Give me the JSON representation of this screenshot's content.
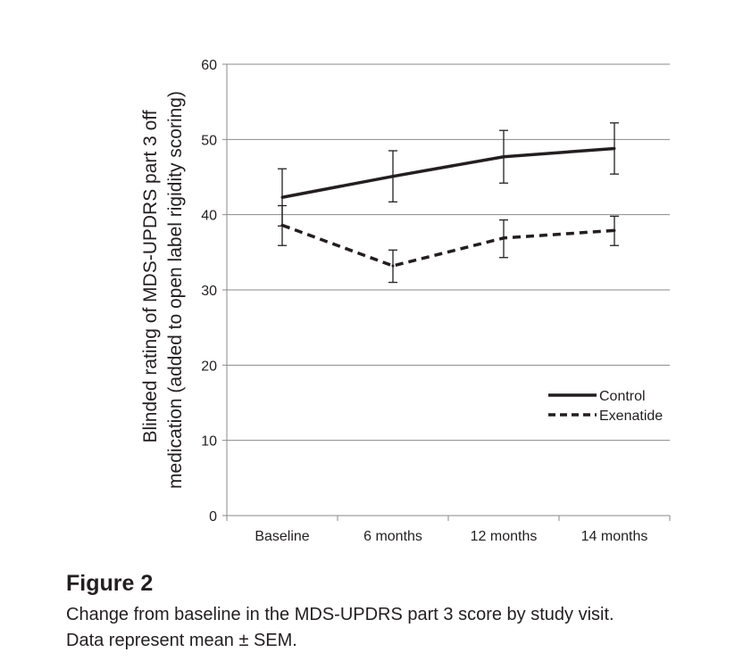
{
  "chart_data": {
    "type": "line",
    "categories": [
      "Baseline",
      "6 months",
      "12 months",
      "14 months"
    ],
    "ylabel_line1": "Blinded rating of MDS-UPDRS part 3 off",
    "ylabel_line2": "medication (added to open label rigidity scoring)",
    "xlabel": "",
    "ylim": [
      0,
      60
    ],
    "yticks": [
      0,
      10,
      20,
      30,
      40,
      50,
      60
    ],
    "grid": true,
    "legend_position": "right",
    "series": [
      {
        "name": "Control",
        "style": "solid",
        "values": [
          42.3,
          45.1,
          47.7,
          48.8
        ],
        "err_low": [
          38.5,
          41.7,
          44.2,
          45.4
        ],
        "err_high": [
          46.1,
          48.5,
          51.2,
          52.2
        ]
      },
      {
        "name": "Exenatide",
        "style": "dashed",
        "values": [
          38.6,
          33.2,
          36.9,
          37.9
        ],
        "err_low": [
          35.9,
          31.0,
          34.3,
          35.9
        ],
        "err_high": [
          41.2,
          35.3,
          39.3,
          39.8
        ]
      }
    ]
  },
  "caption": {
    "title": "Figure 2",
    "text_line1": "Change from baseline in the MDS-UPDRS part 3 score by study visit.",
    "text_line2": "Data represent mean ± SEM."
  }
}
